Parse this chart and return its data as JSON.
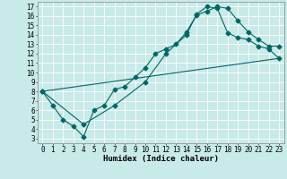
{
  "title": "",
  "xlabel": "Humidex (Indice chaleur)",
  "bg_color": "#c8eae8",
  "grid_color": "#ffffff",
  "line_color": "#006666",
  "xlim": [
    -0.5,
    23.5
  ],
  "ylim": [
    2.5,
    17.5
  ],
  "xticks": [
    0,
    1,
    2,
    3,
    4,
    5,
    6,
    7,
    8,
    9,
    10,
    11,
    12,
    13,
    14,
    15,
    16,
    17,
    18,
    19,
    20,
    21,
    22,
    23
  ],
  "yticks": [
    3,
    4,
    5,
    6,
    7,
    8,
    9,
    10,
    11,
    12,
    13,
    14,
    15,
    16,
    17
  ],
  "line1_x": [
    0,
    1,
    2,
    3,
    4,
    5,
    6,
    7,
    8,
    9,
    10,
    11,
    12,
    13,
    14,
    15,
    16,
    17,
    18,
    19,
    20,
    21,
    22,
    23
  ],
  "line1_y": [
    8.0,
    6.5,
    5.0,
    4.3,
    3.2,
    6.0,
    6.5,
    8.2,
    8.5,
    9.5,
    10.5,
    12.0,
    12.5,
    13.0,
    14.3,
    16.1,
    16.5,
    17.0,
    16.8,
    15.5,
    14.3,
    13.5,
    12.8,
    12.8
  ],
  "line2_x": [
    0,
    4,
    7,
    10,
    12,
    14,
    15,
    16,
    17,
    18,
    19,
    20,
    21,
    22,
    23
  ],
  "line2_y": [
    8.0,
    4.5,
    6.5,
    9.0,
    12.0,
    14.0,
    16.2,
    17.0,
    16.8,
    14.2,
    13.7,
    13.5,
    12.8,
    12.5,
    11.5
  ],
  "line3_x": [
    0,
    23
  ],
  "line3_y": [
    8.0,
    11.5
  ],
  "marker": "D",
  "marker_size": 2.5,
  "tick_fontsize": 5.5,
  "xlabel_fontsize": 6.5
}
